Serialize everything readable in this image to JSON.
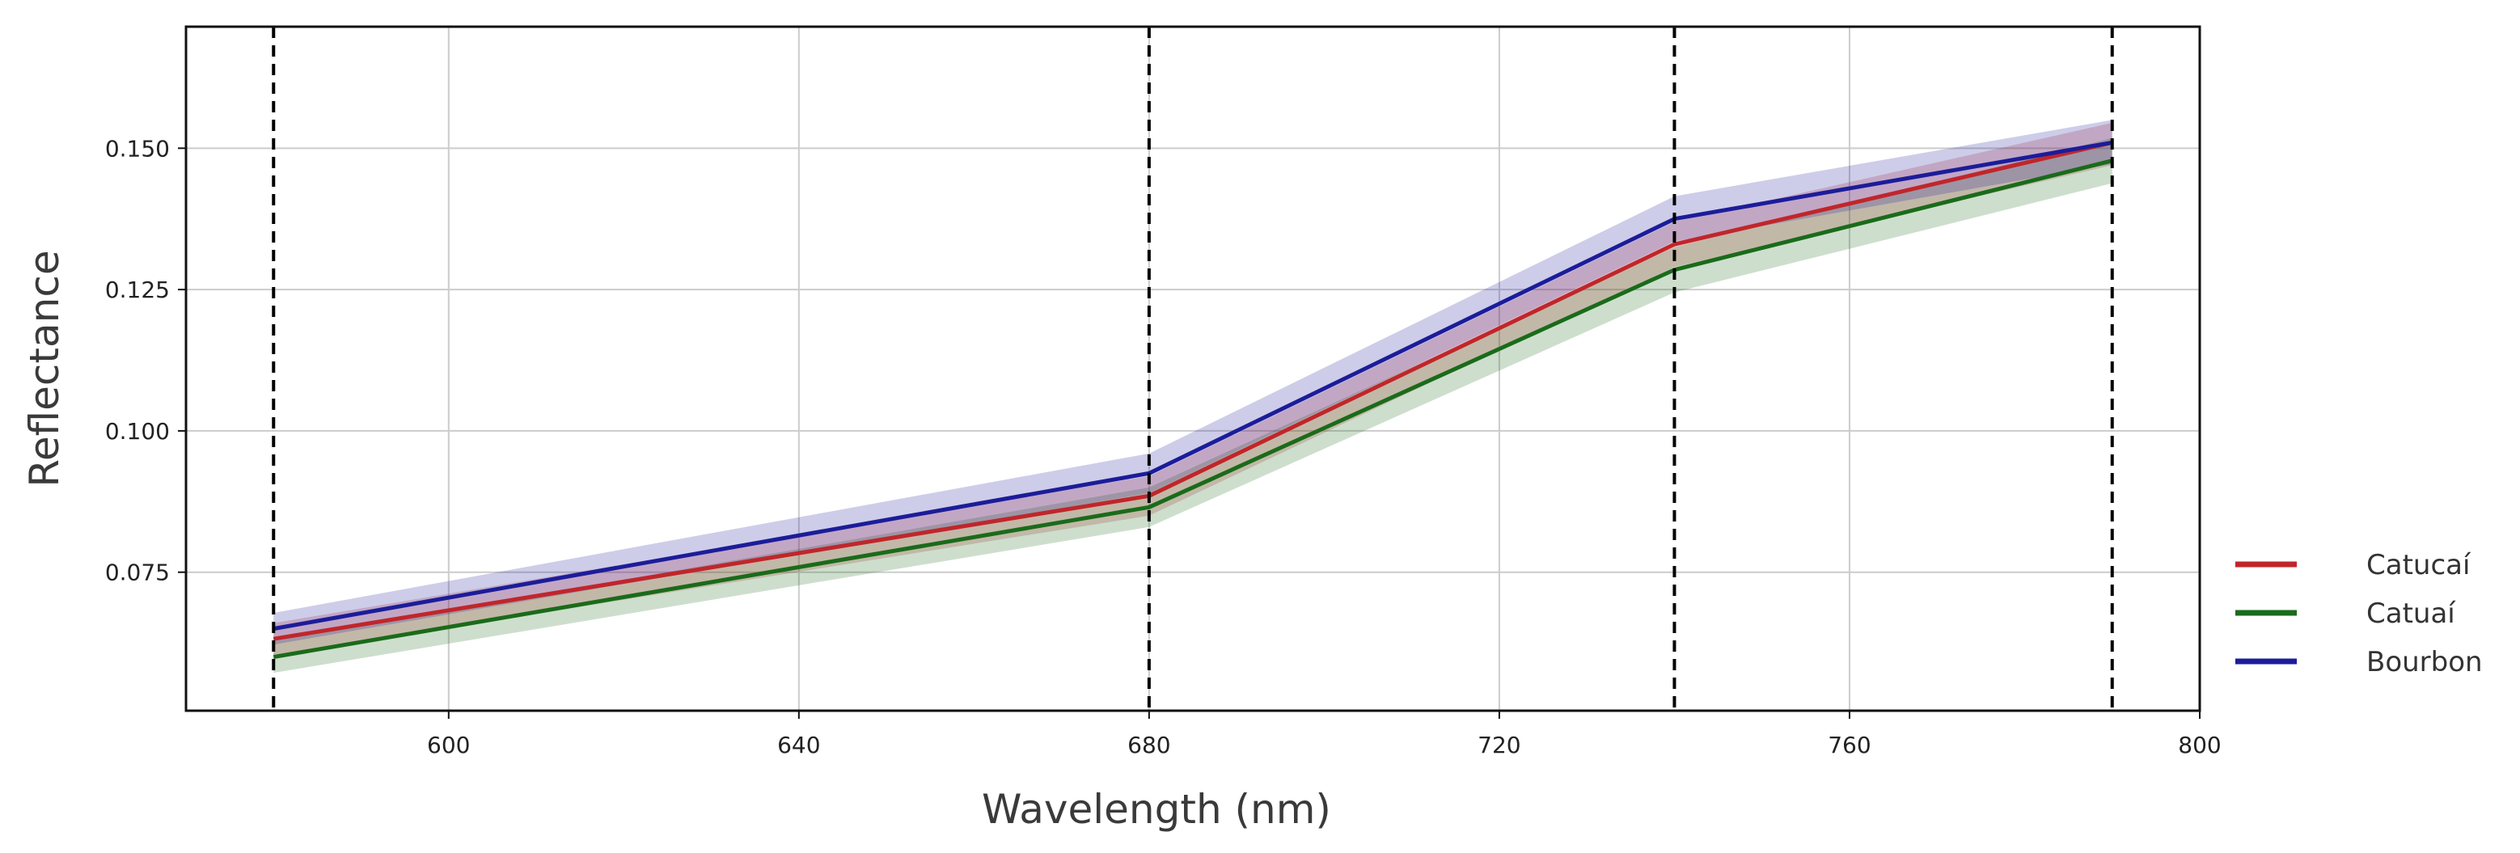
{
  "chart_data": {
    "type": "line",
    "title": "",
    "xlabel": "Wavelength (nm)",
    "ylabel": "Reflectance",
    "xlim": [
      570,
      800
    ],
    "ylim": [
      0.0505,
      0.1715
    ],
    "xticks": [
      600,
      640,
      680,
      720,
      760,
      800
    ],
    "xtick_labels": [
      "600",
      "640",
      "680",
      "720",
      "760",
      "800"
    ],
    "yticks": [
      0.075,
      0.1,
      0.125,
      0.15
    ],
    "ytick_labels": [
      "0.075",
      "0.100",
      "0.125",
      "0.150"
    ],
    "grid": true,
    "legend_position": "outside-right-bottom",
    "vertical_reference_lines": [
      580,
      680,
      740,
      790
    ],
    "x": [
      580,
      680,
      740,
      790
    ],
    "series": [
      {
        "name": "Catucaí",
        "color": "#c0262b",
        "values": [
          0.0632,
          0.0885,
          0.133,
          0.151
        ],
        "band_lower": [
          0.0602,
          0.085,
          0.129,
          0.147
        ],
        "band_upper": [
          0.066,
          0.092,
          0.137,
          0.1545
        ]
      },
      {
        "name": "Catuaí",
        "color": "#1a6b1a",
        "values": [
          0.06,
          0.0865,
          0.1285,
          0.1478
        ],
        "band_lower": [
          0.0572,
          0.083,
          0.1245,
          0.1438
        ],
        "band_upper": [
          0.0628,
          0.09,
          0.1325,
          0.1518
        ]
      },
      {
        "name": "Bourbon",
        "color": "#1c1c9a",
        "values": [
          0.065,
          0.0925,
          0.1375,
          0.151
        ],
        "band_lower": [
          0.0622,
          0.089,
          0.1335,
          0.1472
        ],
        "band_upper": [
          0.0678,
          0.096,
          0.1415,
          0.155
        ]
      }
    ]
  },
  "colors": {
    "band_fill_opacity": "0.22",
    "grid": "#cccccc",
    "frame": "#111111",
    "reference_line": "#000000"
  }
}
